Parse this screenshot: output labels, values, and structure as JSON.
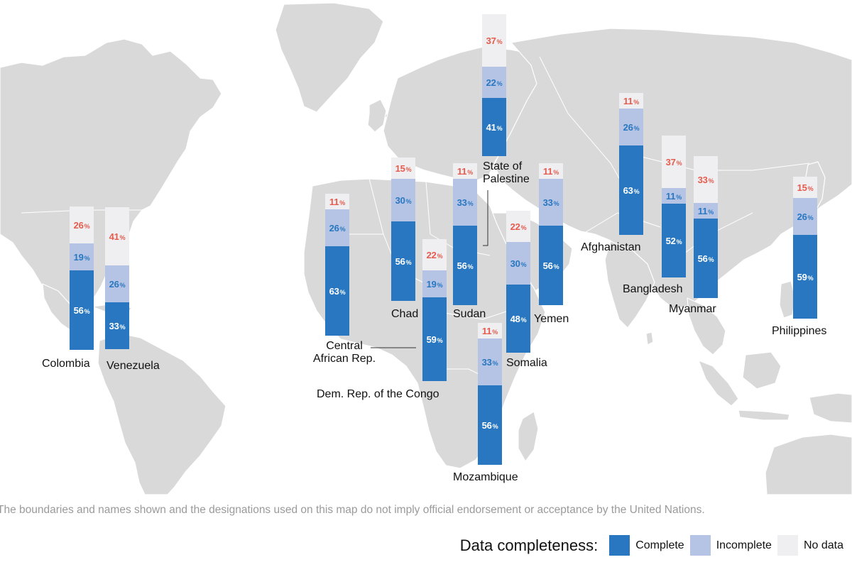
{
  "colors": {
    "complete": "#2877c0",
    "incomplete": "#b5c4e5",
    "no_data": "#efeff1",
    "complete_text": "#ffffff",
    "incomplete_text": "#2877c0",
    "no_data_text": "#e55b4e",
    "land": "#d9d9d9",
    "ocean": "#ffffff"
  },
  "percent_symbol": "%",
  "countries": [
    {
      "name": "Colombia",
      "complete": 56,
      "incomplete": 19,
      "no_data": 26
    },
    {
      "name": "Venezuela",
      "complete": 33,
      "incomplete": 26,
      "no_data": 41
    },
    {
      "name": "Central African Rep.",
      "complete": 63,
      "incomplete": 26,
      "no_data": 11
    },
    {
      "name": "Chad",
      "complete": 56,
      "incomplete": 30,
      "no_data": 15
    },
    {
      "name": "Dem. Rep. of the Congo",
      "complete": 59,
      "incomplete": 19,
      "no_data": 22
    },
    {
      "name": "Sudan",
      "complete": 56,
      "incomplete": 33,
      "no_data": 11
    },
    {
      "name": "State of Palestine",
      "complete": 41,
      "incomplete": 22,
      "no_data": 37
    },
    {
      "name": "Mozambique",
      "complete": 56,
      "incomplete": 33,
      "no_data": 11
    },
    {
      "name": "Somalia",
      "complete": 48,
      "incomplete": 30,
      "no_data": 22
    },
    {
      "name": "Yemen",
      "complete": 56,
      "incomplete": 33,
      "no_data": 11
    },
    {
      "name": "Afghanistan",
      "complete": 63,
      "incomplete": 26,
      "no_data": 11
    },
    {
      "name": "Bangladesh",
      "complete": 52,
      "incomplete": 11,
      "no_data": 37
    },
    {
      "name": "Myanmar",
      "complete": 56,
      "incomplete": 11,
      "no_data": 33
    },
    {
      "name": "Philippines",
      "complete": 59,
      "incomplete": 26,
      "no_data": 15
    }
  ],
  "labels": {
    "colombia": "Colombia",
    "venezuela": "Venezuela",
    "car_line1": "Central",
    "car_line2": "African Rep.",
    "chad": "Chad",
    "drc": "Dem. Rep. of the Congo",
    "sudan": "Sudan",
    "palestine_line1": "State of",
    "palestine_line2": "Palestine",
    "mozambique": "Mozambique",
    "somalia": "Somalia",
    "yemen": "Yemen",
    "afghanistan": "Afghanistan",
    "bangladesh": "Bangladesh",
    "myanmar": "Myanmar",
    "philippines": "Philippines"
  },
  "disclaimer": "The boundaries and names shown and the designations used on this map do not imply official endorsement or acceptance by the United Nations.",
  "legend": {
    "title": "Data completeness:",
    "items": [
      {
        "key": "complete",
        "label": "Complete"
      },
      {
        "key": "incomplete",
        "label": "Incomplete"
      },
      {
        "key": "no_data",
        "label": "No data"
      }
    ]
  }
}
